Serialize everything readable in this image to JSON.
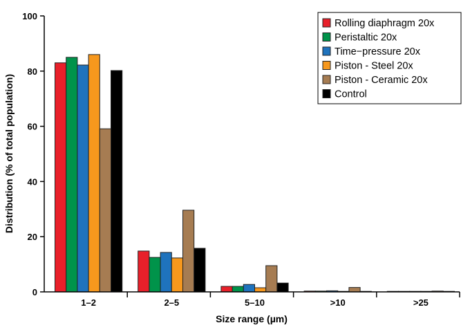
{
  "chart_data": {
    "type": "bar",
    "title": "",
    "xlabel": "Size range (µm)",
    "ylabel": "Distribution (% of total population)",
    "ylim": [
      0,
      100
    ],
    "yticks": [
      "0",
      "20",
      "40",
      "60",
      "80",
      "100"
    ],
    "categories": [
      "1–2",
      "2–5",
      "5–10",
      ">10",
      ">25"
    ],
    "legend_position": "top-right",
    "series": [
      {
        "name": "Rolling diaphragm 20x",
        "color": "#e8202a",
        "values": [
          83.0,
          14.8,
          2.0,
          0.3,
          0.2
        ]
      },
      {
        "name": "Peristaltic 20x",
        "color": "#00934a",
        "values": [
          85.0,
          12.5,
          2.0,
          0.3,
          0.2
        ]
      },
      {
        "name": "Time−pressure 20x",
        "color": "#1f73bd",
        "values": [
          82.2,
          14.3,
          2.7,
          0.4,
          0.2
        ]
      },
      {
        "name": "Piston - Steel 20x",
        "color": "#f7981d",
        "values": [
          86.0,
          12.3,
          1.5,
          0.2,
          0.2
        ]
      },
      {
        "name": "Piston - Ceramic 20x",
        "color": "#a67c52",
        "values": [
          59.1,
          29.6,
          9.5,
          1.6,
          0.3
        ]
      },
      {
        "name": "Control",
        "color": "#000000",
        "values": [
          80.2,
          15.8,
          3.2,
          0.2,
          0.2
        ]
      }
    ]
  }
}
